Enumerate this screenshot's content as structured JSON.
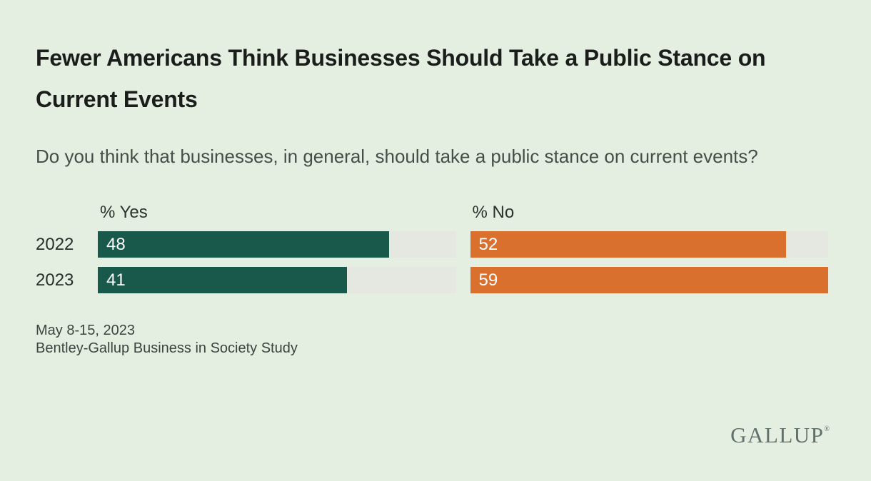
{
  "colors": {
    "background": "#e4efe2",
    "track": "#e4e8e0",
    "yes_bar": "#18594c",
    "no_bar": "#d9702e",
    "title_text": "#1b1d1b",
    "body_text": "#454f48",
    "logo_text": "#60706a",
    "value_label_text": "#ffffff"
  },
  "title": "Fewer Americans Think Businesses Should Take a Public Stance on Current Events",
  "question": "Do you think that businesses, in general, should take a public stance on current events?",
  "chart_data": {
    "type": "bar",
    "orientation": "horizontal",
    "title": "Fewer Americans Think Businesses Should Take a Public Stance on Current Events",
    "subtitle": "Do you think that businesses, in general, should take a public stance on current events?",
    "categories": [
      "2022",
      "2023"
    ],
    "series": [
      {
        "name": "% Yes",
        "values": [
          48,
          41
        ],
        "color": "#18594c"
      },
      {
        "name": "% No",
        "values": [
          52,
          59
        ],
        "color": "#d9702e"
      }
    ],
    "xlim": [
      0,
      59
    ],
    "value_labels_shown": true,
    "grid": false,
    "legend_position": "column-headers",
    "notes": [
      "May 8-15, 2023",
      "Bentley-Gallup Business in Society Study"
    ]
  },
  "footnote": {
    "date": "May 8-15, 2023",
    "source": "Bentley-Gallup Business in Society Study"
  },
  "logo": {
    "text": "GALLUP",
    "mark": "®"
  }
}
